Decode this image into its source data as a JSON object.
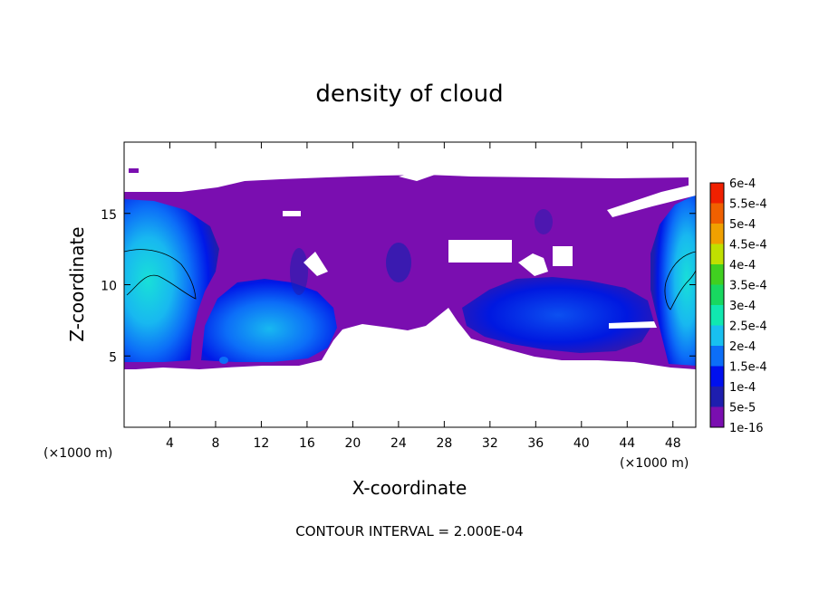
{
  "chart_data": {
    "type": "heatmap",
    "title": "density of cloud",
    "xlabel": "X-coordinate",
    "ylabel": "Z-coordinate",
    "x_unit_label_left": "(×1000 m)",
    "x_unit_label_right": "(×1000 m)",
    "xlim": [
      0,
      50
    ],
    "ylim": [
      0,
      20
    ],
    "x_ticks": [
      4,
      8,
      12,
      16,
      20,
      24,
      28,
      32,
      36,
      40,
      44,
      48
    ],
    "y_ticks": [
      5,
      10,
      15
    ],
    "colorbar": {
      "labels": [
        "1e-16",
        "5e-5",
        "1e-4",
        "1.5e-4",
        "2e-4",
        "2.5e-4",
        "3e-4",
        "3.5e-4",
        "4e-4",
        "4.5e-4",
        "5e-4",
        "5.5e-4",
        "6e-4"
      ],
      "colors": [
        "#7a0eb0",
        "#1e1eae",
        "#0010ee",
        "#0c6ef8",
        "#18c0f0",
        "#10e8b0",
        "#18d860",
        "#40d020",
        "#c0e000",
        "#f0a000",
        "#f06000",
        "#f02000",
        "#f08080"
      ]
    },
    "footer": "CONTOUR INTERVAL = 2.000E-04"
  }
}
